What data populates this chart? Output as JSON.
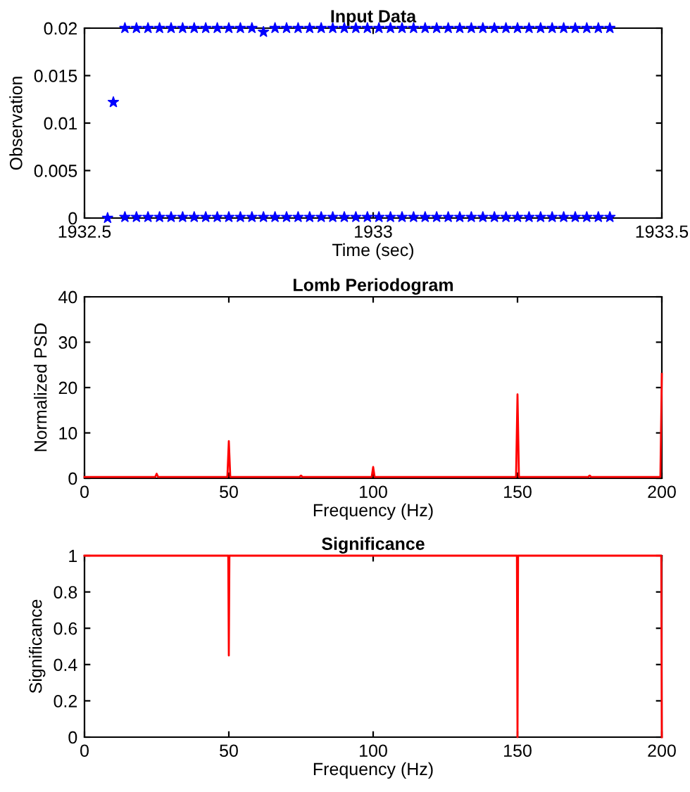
{
  "chart_data": [
    {
      "type": "scatter",
      "title": "Input Data",
      "xlabel": "Time (sec)",
      "ylabel": "Observation",
      "marker": "star",
      "grid": false,
      "xlim": [
        1932.5,
        1933.5
      ],
      "xticks": [
        1932.5,
        1933,
        1933.5
      ],
      "ylim": [
        0,
        0.02
      ],
      "yticks": [
        0,
        0.005,
        0.01,
        0.015,
        0.02
      ],
      "series": [
        {
          "color": "#0000ff",
          "x": [
            1932.57,
            1932.59,
            1932.61,
            1932.63,
            1932.65,
            1932.67,
            1932.69,
            1932.71,
            1932.73,
            1932.75,
            1932.77,
            1932.79,
            1932.81,
            1932.83,
            1932.85,
            1932.87,
            1932.89,
            1932.91,
            1932.93,
            1932.95,
            1932.97,
            1932.99,
            1933.01,
            1933.03,
            1933.05,
            1933.07,
            1933.09,
            1933.11,
            1933.13,
            1933.15,
            1933.17,
            1933.19,
            1933.21,
            1933.23,
            1933.25,
            1933.27,
            1933.29,
            1933.31,
            1933.33,
            1933.35,
            1933.37,
            1933.39,
            1933.41
          ],
          "values": [
            0.02,
            0.02,
            0.02,
            0.02,
            0.02,
            0.02,
            0.02,
            0.02,
            0.02,
            0.02,
            0.02,
            0.02,
            0.0196,
            0.02,
            0.02,
            0.02,
            0.02,
            0.02,
            0.02,
            0.02,
            0.02,
            0.02,
            0.02,
            0.02,
            0.02,
            0.02,
            0.02,
            0.02,
            0.02,
            0.02,
            0.02,
            0.02,
            0.02,
            0.02,
            0.02,
            0.02,
            0.02,
            0.02,
            0.02,
            0.02,
            0.02,
            0.02,
            0.02
          ]
        },
        {
          "color": "#0000ff",
          "x": [
            1932.54,
            1932.55,
            1932.57,
            1932.59,
            1932.61,
            1932.63,
            1932.65,
            1932.67,
            1932.69,
            1932.71,
            1932.73,
            1932.75,
            1932.77,
            1932.79,
            1932.81,
            1932.83,
            1932.85,
            1932.87,
            1932.89,
            1932.91,
            1932.93,
            1932.95,
            1932.97,
            1932.99,
            1933.01,
            1933.03,
            1933.05,
            1933.07,
            1933.09,
            1933.11,
            1933.13,
            1933.15,
            1933.17,
            1933.19,
            1933.21,
            1933.23,
            1933.25,
            1933.27,
            1933.29,
            1933.31,
            1933.33,
            1933.35,
            1933.37,
            1933.39,
            1933.41
          ],
          "values": [
            0,
            0.0122,
            0.0001,
            0.0001,
            0.0001,
            0.0001,
            0.0001,
            0.0001,
            0.0001,
            0.0001,
            0.0001,
            0.0001,
            0.0001,
            0.0001,
            0.0001,
            0.0001,
            0.0001,
            0.0001,
            0.0001,
            0.0001,
            0.0001,
            0.0001,
            0.0001,
            0.0001,
            0.0001,
            0.0001,
            0.0001,
            0.0001,
            0.0001,
            0.0001,
            0.0001,
            0.0001,
            0.0001,
            0.0001,
            0.0001,
            0.0001,
            0.0001,
            0.0001,
            0.0001,
            0.0001,
            0.0001,
            0.0001,
            0.0001,
            0.0001,
            0.0001
          ]
        }
      ]
    },
    {
      "type": "line",
      "title": "Lomb Periodogram",
      "xlabel": "Frequency (Hz)",
      "ylabel": "Normalized PSD",
      "grid": false,
      "line_style": "solid",
      "marker": "none",
      "xlim": [
        0,
        200
      ],
      "xticks": [
        0,
        50,
        100,
        150,
        200
      ],
      "ylim": [
        0,
        40
      ],
      "yticks": [
        0,
        10,
        20,
        30,
        40
      ],
      "series": [
        {
          "color": "#ff0000",
          "x": [
            0,
            24.5,
            25,
            25.5,
            49.5,
            50,
            50.5,
            74.5,
            75,
            75.5,
            99.5,
            100,
            100.5,
            149.5,
            150,
            150.5,
            174.5,
            175,
            175.5,
            199.5,
            200
          ],
          "values": [
            0.3,
            0.3,
            1,
            0.3,
            0.3,
            8.2,
            0.3,
            0.3,
            0.6,
            0.3,
            0.3,
            2.5,
            0.3,
            0.3,
            18.5,
            0.3,
            0.3,
            0.6,
            0.3,
            0.3,
            23
          ]
        }
      ]
    },
    {
      "type": "line",
      "title": "Significance",
      "xlabel": "Frequency (Hz)",
      "ylabel": "Significance",
      "grid": false,
      "line_style": "solid",
      "marker": "none",
      "xlim": [
        0,
        200
      ],
      "xticks": [
        0,
        50,
        100,
        150,
        200
      ],
      "ylim": [
        0,
        1
      ],
      "yticks": [
        0,
        0.2,
        0.4,
        0.6,
        0.8,
        1
      ],
      "series": [
        {
          "color": "#ff0000",
          "x": [
            0,
            49.8,
            50,
            50.2,
            149.8,
            150,
            150.2,
            199.8,
            200
          ],
          "values": [
            1,
            1,
            0.45,
            1,
            1,
            0,
            1,
            1,
            0
          ]
        }
      ]
    }
  ]
}
